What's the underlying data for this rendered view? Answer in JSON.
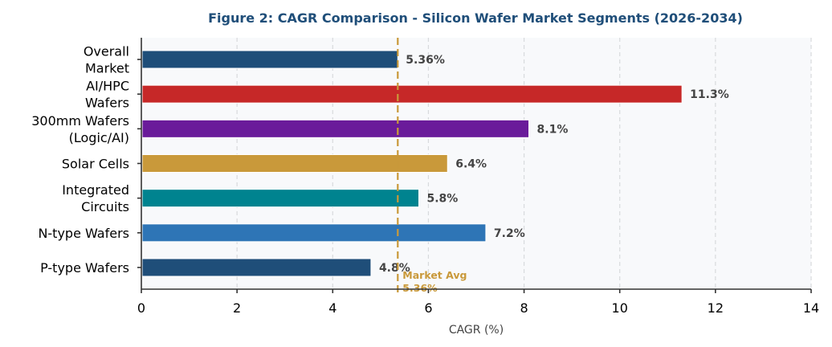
{
  "chart_data": {
    "type": "bar",
    "orientation": "horizontal",
    "title": "Figure 2: CAGR Comparison - Silicon Wafer Market Segments (2026-2034)",
    "xlabel": "CAGR (%)",
    "ylabel": "",
    "xlim": [
      0,
      14
    ],
    "xticks": [
      "0",
      "2",
      "4",
      "6",
      "8",
      "10",
      "12",
      "14"
    ],
    "xtick_values": [
      0,
      2,
      4,
      6,
      8,
      10,
      12,
      14
    ],
    "grid": "vertical dashed",
    "categories": [
      [
        "Overall",
        "Market"
      ],
      [
        "AI/HPC",
        "Wafers"
      ],
      [
        "300mm Wafers",
        "(Logic/AI)"
      ],
      [
        "Solar Cells"
      ],
      [
        "Integrated",
        "Circuits"
      ],
      [
        "N-type Wafers"
      ],
      [
        "P-type Wafers"
      ]
    ],
    "values": [
      5.36,
      11.3,
      8.1,
      6.4,
      5.8,
      7.2,
      4.8
    ],
    "value_labels": [
      "5.36%",
      "11.3%",
      "8.1%",
      "6.4%",
      "5.8%",
      "7.2%",
      "4.8%"
    ],
    "colors": [
      "#1f4e79",
      "#c62828",
      "#6a1b9a",
      "#c9993a",
      "#00838f",
      "#2e75b6",
      "#1f4e79"
    ],
    "reference_line": {
      "value": 5.36,
      "label": [
        "Market Avg",
        "5.36%"
      ],
      "color": "#c9993a",
      "style": "dashed"
    }
  },
  "colors": {
    "plot_background": "#f8f9fb",
    "grid": "#d8dadd",
    "axis": "#333333",
    "title": "#1f4e79",
    "value_label": "#444444"
  }
}
